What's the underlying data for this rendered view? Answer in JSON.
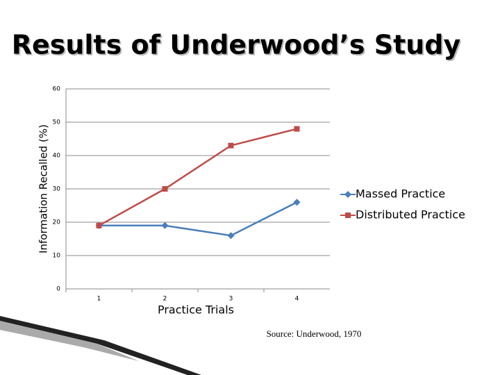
{
  "chart_data": {
    "type": "line",
    "title": "Results of Underwood’s Study",
    "x_label": "Practice Trials",
    "y_label": "Information Recalled (%)",
    "categories": [
      "1",
      "2",
      "3",
      "4"
    ],
    "series": [
      {
        "name": "Massed Practice",
        "color": "#4a7ebb",
        "marker": "diamond",
        "values": [
          19,
          19,
          16,
          26
        ]
      },
      {
        "name": "Distributed Practice",
        "color": "#be4b48",
        "marker": "square",
        "values": [
          19,
          30,
          43,
          48
        ]
      }
    ],
    "ylim": [
      0,
      60
    ],
    "yticks": [
      0,
      10,
      20,
      30,
      40,
      50,
      60
    ],
    "grid": true,
    "legend": "right",
    "source": "Source: Underwood, 1970"
  }
}
